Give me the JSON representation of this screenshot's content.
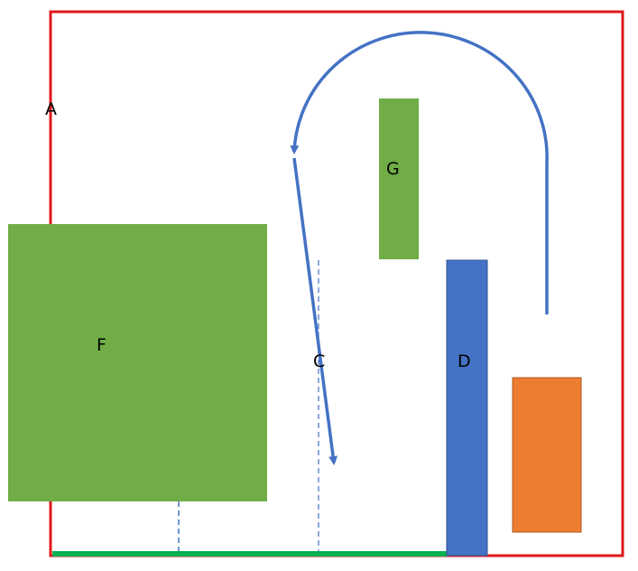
{
  "labels": {
    "a": "A",
    "c": "C",
    "d": "D",
    "f": "F",
    "g": "G"
  },
  "colors": {
    "boundary": "#e0191b",
    "green_block": "#70ad47",
    "blue_block": "#4472c4",
    "orange_block": "#ed7d31",
    "baseline": "#00b050",
    "path": "#4472c4",
    "dashed": "#4472c4"
  }
}
